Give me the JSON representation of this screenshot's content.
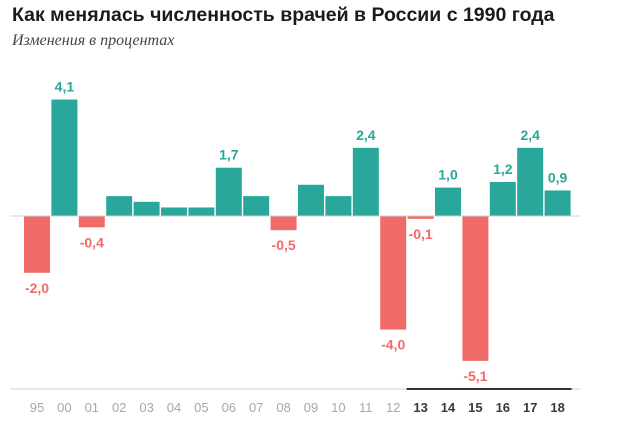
{
  "title": "Как менялась численность врачей в России с 1990 года",
  "subtitle": "Изменения в процентах",
  "colors": {
    "positive": "#2aa79b",
    "negative": "#f06b67",
    "tick_normal": "#a7a7a7",
    "tick_bold": "#3a3a3a",
    "axis": "#d0d0d0",
    "highlight_axis": "#333333"
  },
  "chart_data": {
    "type": "bar",
    "categories": [
      "95",
      "00",
      "01",
      "02",
      "03",
      "04",
      "05",
      "06",
      "07",
      "08",
      "09",
      "10",
      "11",
      "12",
      "13",
      "14",
      "15",
      "16",
      "17",
      "18"
    ],
    "bold_categories": [
      "13",
      "14",
      "15",
      "16",
      "17",
      "18"
    ],
    "values": [
      -2.0,
      4.1,
      -0.4,
      0.7,
      0.5,
      0.3,
      0.3,
      1.7,
      0.7,
      -0.5,
      1.1,
      0.7,
      2.4,
      -4.0,
      -0.1,
      1.0,
      -5.1,
      1.2,
      2.4,
      0.9
    ],
    "labels": [
      "-2,0",
      "4,1",
      "-0,4",
      "",
      "",
      "",
      "",
      "1,7",
      "",
      "-0,5",
      "",
      "",
      "2,4",
      "-4,0",
      "-0,1",
      "1,0",
      "-5,1",
      "1,2",
      "2,4",
      "0,9"
    ],
    "ylim": [
      -6.0,
      4.2
    ],
    "grid": false
  }
}
